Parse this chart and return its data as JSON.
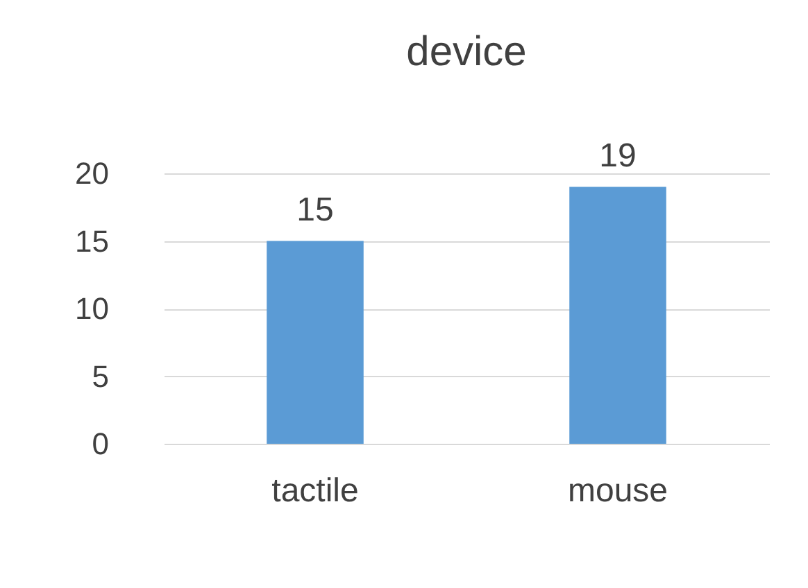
{
  "chart_data": {
    "type": "bar",
    "title": "device",
    "categories": [
      "tactile",
      "mouse"
    ],
    "values": [
      15,
      19
    ],
    "color": "#5b9bd5",
    "ylim": [
      0,
      20
    ],
    "yticks": [
      0,
      5,
      10,
      15,
      20
    ],
    "grid": "y",
    "data_labels": true
  }
}
